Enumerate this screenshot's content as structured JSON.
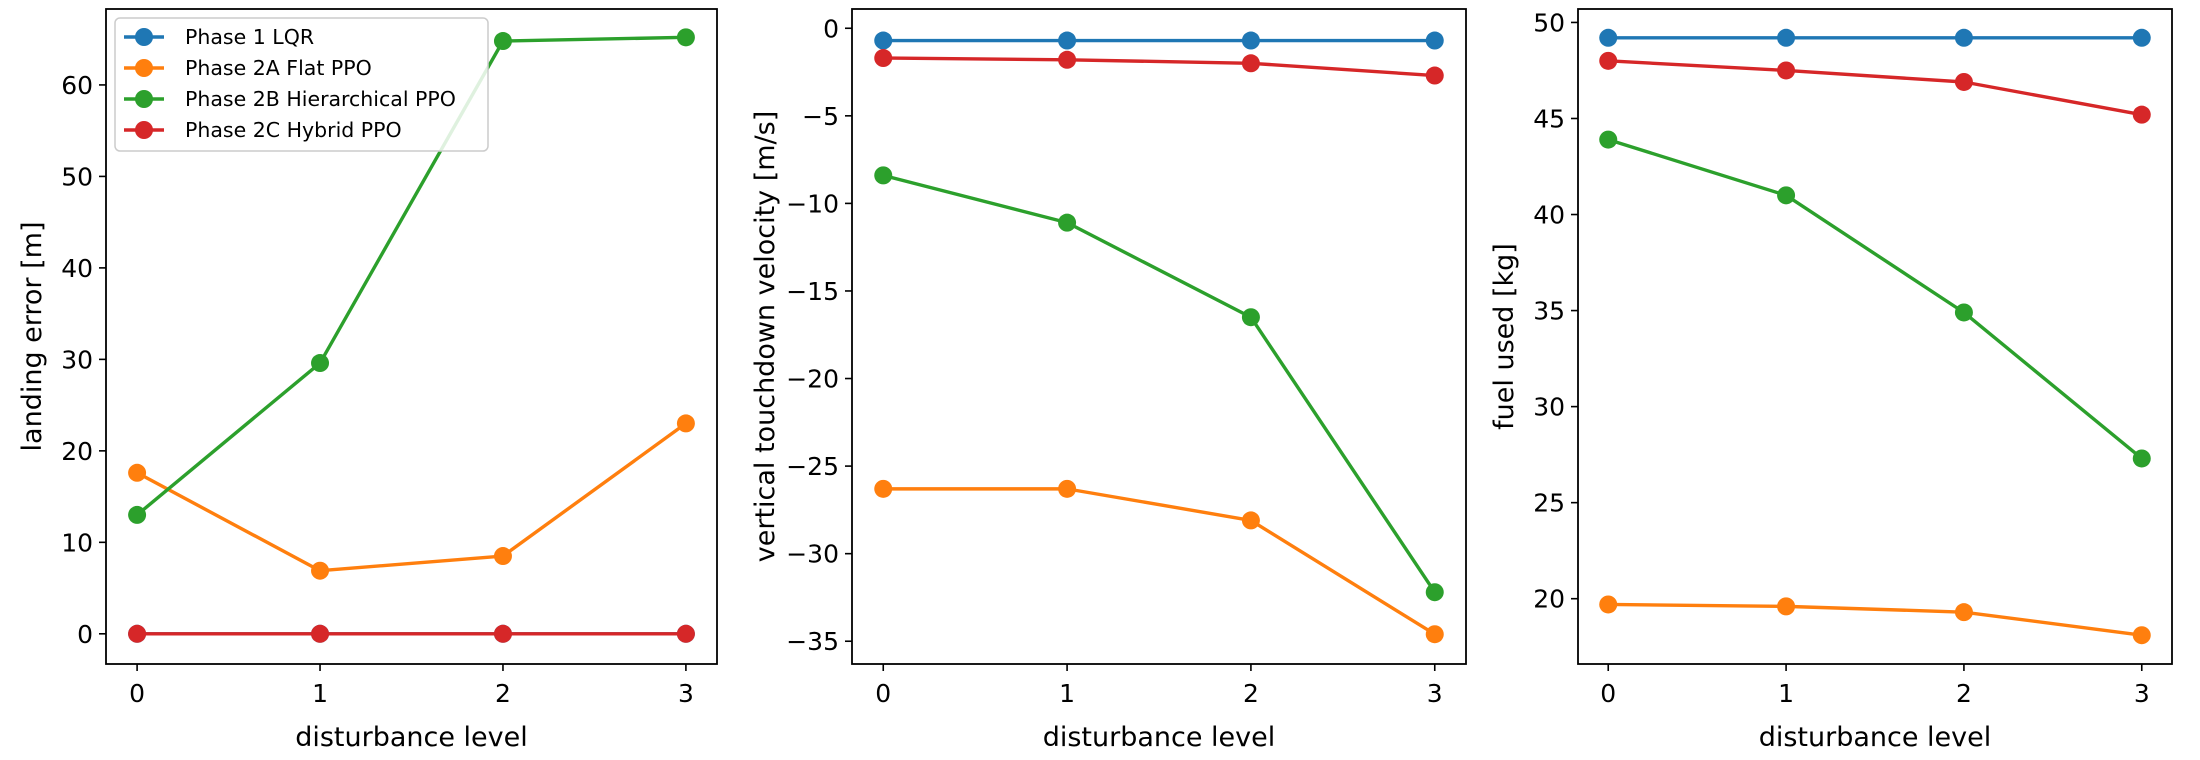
{
  "chart_data": [
    {
      "type": "line",
      "xlabel": "disturbance level",
      "ylabel": "landing error [m]",
      "x": [
        0,
        1,
        2,
        3
      ],
      "xlim": [
        -0.17,
        3.17
      ],
      "ylim": [
        -3.3,
        68.3
      ],
      "xticks": [
        0,
        1,
        2,
        3
      ],
      "yticks": [
        0,
        10,
        20,
        30,
        40,
        50,
        60
      ],
      "grid": false,
      "legend": {
        "placement": "upper-left"
      },
      "series": [
        {
          "name": "Phase 1 LQR",
          "color": "#1f77b4",
          "values": [
            0.0,
            0.0,
            0.0,
            0.0
          ]
        },
        {
          "name": "Phase 2A Flat PPO",
          "color": "#ff7f0e",
          "values": [
            17.6,
            6.9,
            8.5,
            23.0
          ]
        },
        {
          "name": "Phase 2B Hierarchical PPO",
          "color": "#2ca02c",
          "values": [
            13.0,
            29.6,
            64.8,
            65.2
          ]
        },
        {
          "name": "Phase 2C Hybrid PPO",
          "color": "#d62728",
          "values": [
            0.0,
            0.0,
            0.0,
            0.0
          ]
        }
      ]
    },
    {
      "type": "line",
      "xlabel": "disturbance level",
      "ylabel": "vertical touchdown velocity [m/s]",
      "x": [
        0,
        1,
        2,
        3
      ],
      "xlim": [
        -0.17,
        3.17
      ],
      "ylim": [
        -36.3,
        1.1
      ],
      "xticks": [
        0,
        1,
        2,
        3
      ],
      "yticks": [
        0,
        -5,
        -10,
        -15,
        -20,
        -25,
        -30,
        -35
      ],
      "grid": false,
      "series": [
        {
          "name": "Phase 1 LQR",
          "color": "#1f77b4",
          "values": [
            -0.7,
            -0.7,
            -0.7,
            -0.7
          ]
        },
        {
          "name": "Phase 2A Flat PPO",
          "color": "#ff7f0e",
          "values": [
            -26.3,
            -26.3,
            -28.1,
            -34.6
          ]
        },
        {
          "name": "Phase 2B Hierarchical PPO",
          "color": "#2ca02c",
          "values": [
            -8.4,
            -11.1,
            -16.5,
            -32.2
          ]
        },
        {
          "name": "Phase 2C Hybrid PPO",
          "color": "#d62728",
          "values": [
            -1.7,
            -1.8,
            -2.0,
            -2.7
          ]
        }
      ]
    },
    {
      "type": "line",
      "xlabel": "disturbance level",
      "ylabel": "fuel used [kg]",
      "x": [
        0,
        1,
        2,
        3
      ],
      "xlim": [
        -0.17,
        3.17
      ],
      "ylim": [
        16.6,
        50.7
      ],
      "xticks": [
        0,
        1,
        2,
        3
      ],
      "yticks": [
        20,
        25,
        30,
        35,
        40,
        45,
        50
      ],
      "grid": false,
      "series": [
        {
          "name": "Phase 1 LQR",
          "color": "#1f77b4",
          "values": [
            49.2,
            49.2,
            49.2,
            49.2
          ]
        },
        {
          "name": "Phase 2A Flat PPO",
          "color": "#ff7f0e",
          "values": [
            19.7,
            19.6,
            19.3,
            18.1
          ]
        },
        {
          "name": "Phase 2B Hierarchical PPO",
          "color": "#2ca02c",
          "values": [
            43.9,
            41.0,
            34.9,
            27.3
          ]
        },
        {
          "name": "Phase 2C Hybrid PPO",
          "color": "#d62728",
          "values": [
            48.0,
            47.5,
            46.9,
            45.2
          ]
        }
      ]
    }
  ]
}
